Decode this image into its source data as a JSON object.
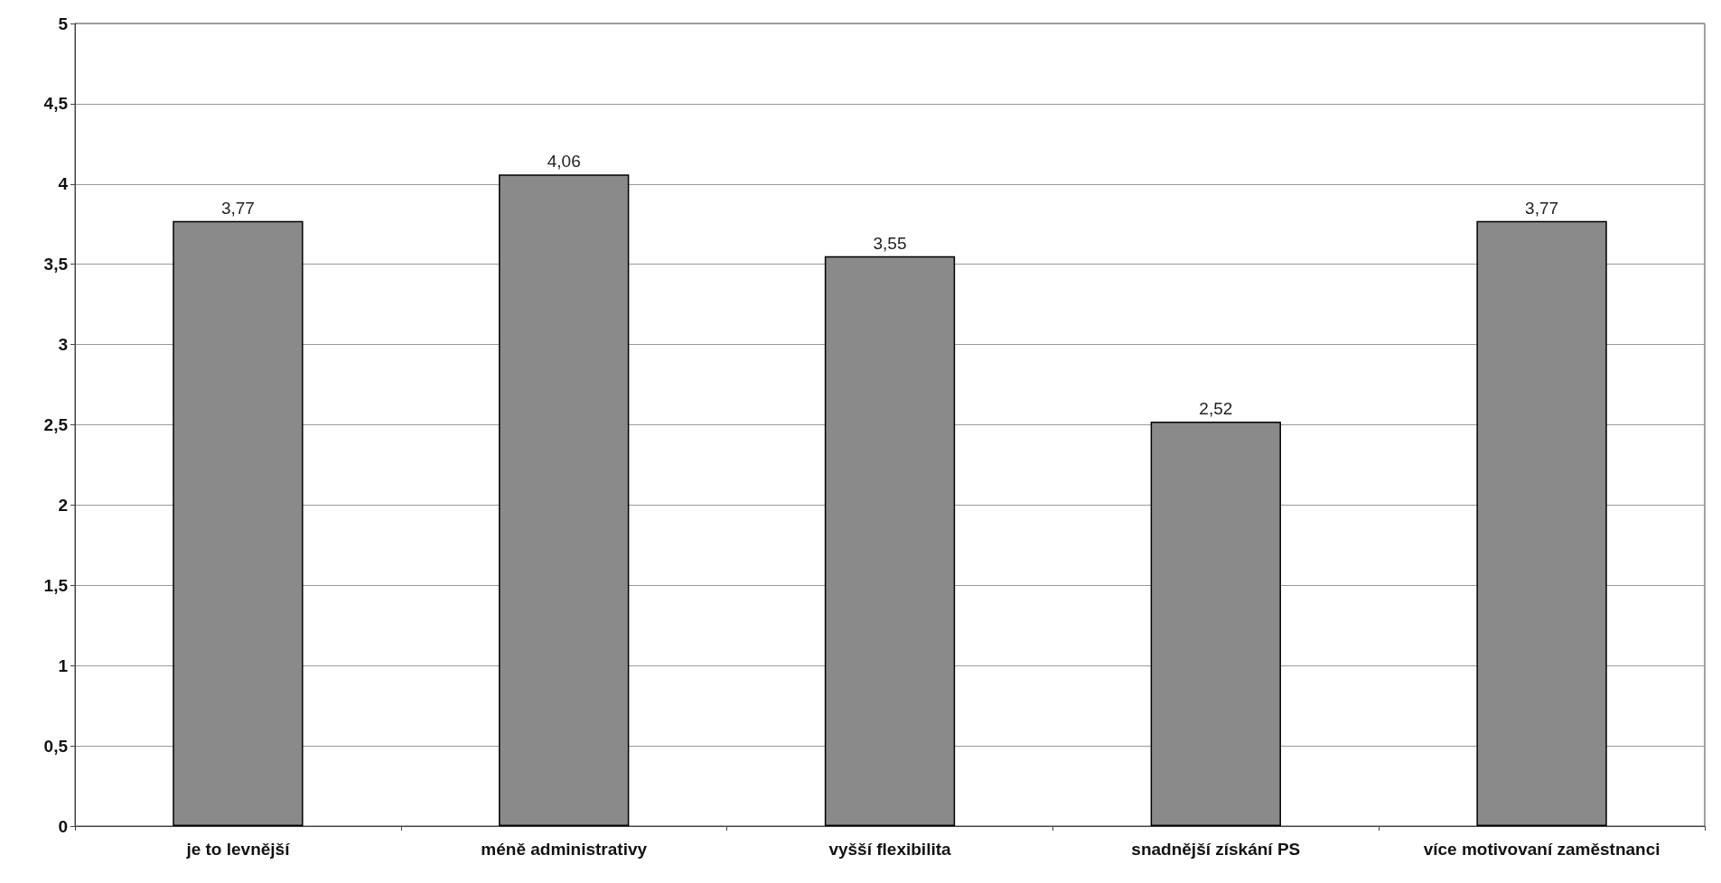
{
  "chart_data": {
    "type": "bar",
    "categories": [
      "je to levnější",
      "méně administrativy",
      "vyšší flexibilita",
      "snadnější získání PS",
      "více motivovaní zaměstnanci"
    ],
    "values": [
      3.77,
      4.06,
      3.55,
      2.52,
      3.77
    ],
    "value_labels": [
      "3,77",
      "4,06",
      "3,55",
      "2,52",
      "3,77"
    ],
    "color": "#8a8a8a",
    "ylim": [
      0,
      5
    ],
    "yticks": [
      0,
      {
        "value": 0.5,
        "label": "0,5"
      },
      1,
      {
        "value": 1.5,
        "label": "1,5"
      },
      2,
      {
        "value": 2.5,
        "label": "2,5"
      },
      3,
      {
        "value": 3.5,
        "label": "3,5"
      },
      4,
      {
        "value": 4.5,
        "label": "4,5"
      },
      5
    ],
    "grid": "y"
  }
}
